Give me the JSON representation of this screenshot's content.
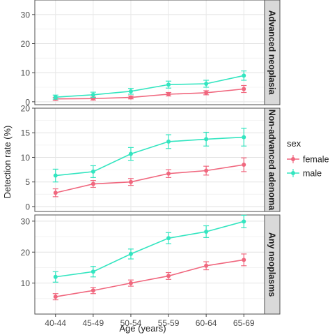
{
  "chart_data": {
    "type": "line",
    "ylabel": "Detection rate (%)",
    "xlabel": "Age (years)",
    "categories": [
      "40-44",
      "45-49",
      "50-54",
      "55-59",
      "60-64",
      "65-69"
    ],
    "legend": {
      "title": "sex",
      "placement": "right",
      "entries": [
        {
          "name": "female",
          "color": "#f0677e"
        },
        {
          "name": "male",
          "color": "#33e5c0"
        }
      ]
    },
    "grid": true,
    "panels": [
      {
        "strip_label": "Advanced neoplasia",
        "ylim": [
          -1,
          35
        ],
        "yticks": [
          0,
          10,
          20,
          30
        ],
        "series": [
          {
            "name": "female",
            "values": [
              1.0,
              1.1,
              1.5,
              2.6,
              3.1,
              4.4
            ],
            "lower": [
              0.5,
              0.6,
              1.0,
              2.0,
              2.4,
              3.2
            ],
            "upper": [
              1.5,
              1.6,
              2.0,
              3.2,
              3.8,
              5.6
            ]
          },
          {
            "name": "male",
            "values": [
              1.6,
              2.4,
              3.6,
              5.9,
              6.2,
              9.0
            ],
            "lower": [
              0.9,
              1.5,
              2.6,
              4.7,
              5.0,
              7.4
            ],
            "upper": [
              2.3,
              3.3,
              4.6,
              7.1,
              7.4,
              10.6
            ]
          }
        ]
      },
      {
        "strip_label": "Non-advanced adenoma",
        "ylim": [
          -1,
          20
        ],
        "yticks": [
          0,
          5,
          10,
          15,
          20
        ],
        "series": [
          {
            "name": "female",
            "values": [
              2.8,
              4.6,
              5.0,
              6.7,
              7.3,
              8.5
            ],
            "lower": [
              2.0,
              3.9,
              4.3,
              5.9,
              6.4,
              7.1
            ],
            "upper": [
              3.6,
              5.3,
              5.7,
              7.5,
              8.2,
              9.9
            ]
          },
          {
            "name": "male",
            "values": [
              6.3,
              7.1,
              10.7,
              13.2,
              13.7,
              14.1
            ],
            "lower": [
              5.0,
              5.9,
              9.4,
              11.8,
              12.3,
              12.3
            ],
            "upper": [
              7.6,
              8.3,
              12.0,
              14.6,
              15.1,
              15.9
            ]
          }
        ]
      },
      {
        "strip_label": "Any neoplasms",
        "ylim": [
          0,
          32
        ],
        "yticks": [
          10,
          20,
          30
        ],
        "series": [
          {
            "name": "female",
            "values": [
              5.6,
              7.6,
              10.0,
              12.3,
              15.6,
              17.5
            ],
            "lower": [
              4.6,
              6.6,
              9.0,
              11.2,
              14.3,
              15.6
            ],
            "upper": [
              6.6,
              8.6,
              11.0,
              13.4,
              16.9,
              19.4
            ]
          },
          {
            "name": "male",
            "values": [
              12.0,
              13.7,
              19.4,
              24.5,
              26.6,
              29.9
            ],
            "lower": [
              10.3,
              12.0,
              17.8,
              22.7,
              24.7,
              27.9
            ],
            "upper": [
              13.7,
              15.4,
              21.0,
              26.3,
              28.5,
              31.9
            ]
          }
        ]
      }
    ]
  }
}
